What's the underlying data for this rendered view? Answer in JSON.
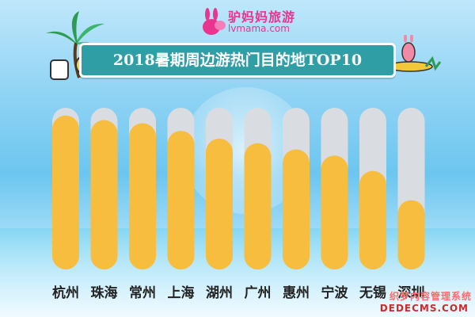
{
  "branding": {
    "brand_name": "驴妈妈旅游",
    "brand_domain": "lvmama.com",
    "brand_color": "#e8358f"
  },
  "watermark": {
    "line1": "织梦内容管理系统",
    "line2": "DEDECMS.COM"
  },
  "chart_data": {
    "type": "bar",
    "title": "2018暑期周边游热门目的地TOP10",
    "xlabel": "",
    "ylabel": "",
    "categories": [
      "杭州",
      "珠海",
      "常州",
      "上海",
      "湖州",
      "广州",
      "惠州",
      "宁波",
      "无锡",
      "深圳"
    ],
    "values": [
      100,
      97,
      95,
      90,
      85,
      82,
      78,
      74,
      64,
      45
    ],
    "ylim": [
      0,
      105
    ],
    "grid": false,
    "legend": "none",
    "colors": {
      "bar": "#f7bd3f",
      "track": "#d9dde2"
    }
  }
}
